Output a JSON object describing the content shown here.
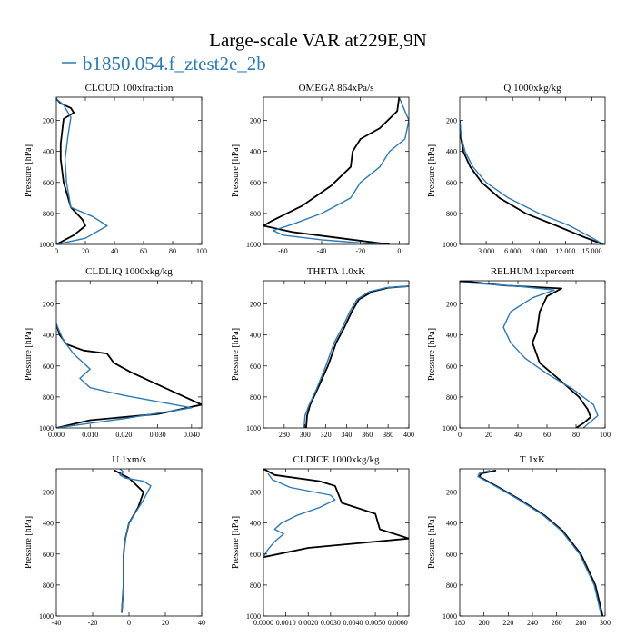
{
  "figure": {
    "title": "Large-scale VAR at229E,9N",
    "legend": [
      {
        "name": "b1850.054.f_ztest2e_2b",
        "color": "#2b7bb9"
      }
    ],
    "colors": {
      "series_a": "#000000",
      "series_b": "#2b7bb9"
    }
  },
  "chart_data": [
    {
      "type": "line",
      "title": "CLOUD  100xfraction",
      "ylabel": "Pressure [hPa]",
      "xlim": [
        0,
        100
      ],
      "ylim": [
        1000,
        50
      ],
      "y_reversed": true,
      "xticks": [
        0,
        20,
        40,
        60,
        80,
        100
      ],
      "xtick_labels": [
        "0",
        "20",
        "40",
        "60",
        "80",
        "100"
      ],
      "yticks": [
        200,
        400,
        600,
        800,
        1000
      ],
      "ytick_labels": [
        "200",
        "400",
        "600",
        "800",
        "1000"
      ],
      "series": [
        {
          "color": "#000000",
          "x": [
            0,
            3,
            10,
            12,
            5,
            3,
            3,
            5,
            10,
            18,
            20,
            12,
            0
          ],
          "y": [
            60,
            90,
            120,
            150,
            190,
            350,
            450,
            600,
            760,
            840,
            880,
            940,
            1000
          ]
        },
        {
          "color": "#2b7bb9",
          "x": [
            0,
            5,
            10,
            8,
            6,
            7,
            10,
            25,
            35,
            20,
            0
          ],
          "y": [
            60,
            100,
            180,
            300,
            450,
            600,
            760,
            820,
            880,
            960,
            1000
          ]
        }
      ]
    },
    {
      "type": "line",
      "title": "OMEGA  864xPa/s",
      "ylabel": "Pressure [hPa]",
      "xlim": [
        -70,
        5
      ],
      "ylim": [
        1000,
        50
      ],
      "y_reversed": true,
      "xticks": [
        -60,
        -40,
        -20,
        0
      ],
      "xtick_labels": [
        "-60",
        "-40",
        "-20",
        "0"
      ],
      "yticks": [
        200,
        400,
        600,
        800,
        1000
      ],
      "ytick_labels": [
        "200",
        "400",
        "600",
        "800",
        "1000"
      ],
      "series": [
        {
          "color": "#000000",
          "x": [
            0,
            -1,
            -10,
            -20,
            -24,
            -25,
            -35,
            -50,
            -66,
            -70,
            -55,
            -30,
            -5
          ],
          "y": [
            50,
            140,
            250,
            320,
            400,
            500,
            620,
            750,
            850,
            880,
            920,
            960,
            1000
          ]
        },
        {
          "color": "#2b7bb9",
          "x": [
            0,
            5,
            3,
            -5,
            -10,
            -20,
            -25,
            -40,
            -55,
            -65,
            -60,
            -40,
            -10
          ],
          "y": [
            50,
            200,
            320,
            400,
            500,
            600,
            700,
            800,
            870,
            910,
            940,
            970,
            1000
          ]
        }
      ]
    },
    {
      "type": "line",
      "title": "Q  1000xkg/kg",
      "ylabel": "Pressure [hPa]",
      "xlim": [
        0,
        16.5
      ],
      "ylim": [
        1000,
        50
      ],
      "y_reversed": true,
      "xticks": [
        3,
        6,
        9,
        12,
        15
      ],
      "xtick_labels": [
        "3.000",
        "6.000",
        "9.000",
        "12.000",
        "15.000"
      ],
      "yticks": [
        200,
        400,
        600,
        800,
        1000
      ],
      "ytick_labels": [
        "200",
        "400",
        "600",
        "800",
        "1000"
      ],
      "series": [
        {
          "color": "#000000",
          "x": [
            0,
            0.1,
            0.4,
            1.2,
            2.5,
            4.5,
            7.5,
            11,
            14,
            16.3
          ],
          "y": [
            200,
            300,
            400,
            500,
            600,
            700,
            800,
            880,
            950,
            1000
          ]
        },
        {
          "color": "#2b7bb9",
          "x": [
            0,
            0.15,
            0.6,
            1.5,
            3,
            5.5,
            9,
            12.5,
            14.8,
            16.3
          ],
          "y": [
            200,
            300,
            400,
            500,
            600,
            700,
            800,
            880,
            950,
            1000
          ]
        }
      ]
    },
    {
      "type": "line",
      "title": "CLDLIQ  1000xkg/kg",
      "ylabel": "Pressure [hPa]",
      "xlim": [
        0,
        0.043
      ],
      "ylim": [
        1000,
        50
      ],
      "y_reversed": true,
      "xticks": [
        0,
        0.01,
        0.02,
        0.03,
        0.04
      ],
      "xtick_labels": [
        "0.000",
        "0.010",
        "0.020",
        "0.030",
        "0.040"
      ],
      "yticks": [
        200,
        400,
        600,
        800,
        1000
      ],
      "ytick_labels": [
        "200",
        "400",
        "600",
        "800",
        "1000"
      ],
      "series": [
        {
          "color": "#000000",
          "x": [
            0,
            0.001,
            0.003,
            0.008,
            0.015,
            0.017,
            0.022,
            0.032,
            0.043,
            0.03,
            0.01,
            0
          ],
          "y": [
            330,
            400,
            460,
            500,
            520,
            580,
            640,
            740,
            850,
            910,
            950,
            1000
          ]
        },
        {
          "color": "#2b7bb9",
          "x": [
            0,
            0.002,
            0.005,
            0.008,
            0.01,
            0.007,
            0.01,
            0.02,
            0.04,
            0.02,
            0
          ],
          "y": [
            330,
            430,
            520,
            580,
            620,
            680,
            740,
            790,
            870,
            940,
            1000
          ]
        }
      ]
    },
    {
      "type": "line",
      "title": "THETA  1.0xK",
      "ylabel": "Pressure [hPa]",
      "xlim": [
        260,
        400
      ],
      "ylim": [
        1000,
        50
      ],
      "y_reversed": true,
      "xticks": [
        280,
        300,
        320,
        340,
        360,
        380,
        400
      ],
      "xtick_labels": [
        "280",
        "300",
        "320",
        "340",
        "360",
        "380",
        "400"
      ],
      "yticks": [
        200,
        400,
        600,
        800,
        1000
      ],
      "ytick_labels": [
        "200",
        "400",
        "600",
        "800",
        "1000"
      ],
      "series": [
        {
          "color": "#000000",
          "x": [
            400,
            380,
            365,
            352,
            345,
            338,
            330,
            322,
            312,
            305,
            302,
            301
          ],
          "y": [
            85,
            95,
            120,
            170,
            250,
            350,
            450,
            600,
            750,
            850,
            920,
            1000
          ]
        },
        {
          "color": "#2b7bb9",
          "x": [
            400,
            378,
            362,
            350,
            343,
            336,
            328,
            320,
            311,
            304,
            300,
            299
          ],
          "y": [
            85,
            95,
            120,
            170,
            250,
            350,
            450,
            600,
            750,
            850,
            920,
            1000
          ]
        }
      ]
    },
    {
      "type": "line",
      "title": "RELHUM  1xpercent",
      "ylabel": "Pressure [hPa]",
      "xlim": [
        0,
        100
      ],
      "ylim": [
        1000,
        50
      ],
      "y_reversed": true,
      "xticks": [
        0,
        20,
        40,
        60,
        80,
        100
      ],
      "xtick_labels": [
        "0",
        "20",
        "40",
        "60",
        "80",
        "100"
      ],
      "yticks": [
        200,
        400,
        600,
        800,
        1000
      ],
      "ytick_labels": [
        "200",
        "400",
        "600",
        "800",
        "1000"
      ],
      "series": [
        {
          "color": "#000000",
          "x": [
            0,
            30,
            70,
            60,
            55,
            53,
            50,
            55,
            70,
            82,
            88,
            90,
            85,
            80
          ],
          "y": [
            50,
            80,
            100,
            150,
            250,
            380,
            450,
            580,
            700,
            800,
            880,
            930,
            970,
            1000
          ]
        },
        {
          "color": "#2b7bb9",
          "x": [
            0,
            40,
            65,
            50,
            35,
            30,
            35,
            45,
            60,
            78,
            92,
            95,
            85
          ],
          "y": [
            60,
            85,
            110,
            160,
            250,
            350,
            450,
            550,
            650,
            750,
            850,
            920,
            1000
          ]
        }
      ]
    },
    {
      "type": "line",
      "title": "U  1xm/s",
      "ylabel": "Pressure [hPa]",
      "xlim": [
        -40,
        40
      ],
      "ylim": [
        1000,
        50
      ],
      "y_reversed": true,
      "xticks": [
        -40,
        -20,
        0,
        20,
        40
      ],
      "xtick_labels": [
        "-40",
        "-20",
        "0",
        "20",
        "40"
      ],
      "yticks": [
        200,
        400,
        600,
        800,
        1000
      ],
      "ytick_labels": [
        "200",
        "400",
        "600",
        "800",
        "1000"
      ],
      "series": [
        {
          "color": "#000000",
          "x": [
            -8,
            0,
            8,
            5,
            0,
            -2,
            -3,
            -3,
            -4
          ],
          "y": [
            60,
            110,
            200,
            300,
            400,
            500,
            600,
            800,
            980
          ]
        },
        {
          "color": "#2b7bb9",
          "x": [
            -5,
            -3,
            -5,
            -2,
            8,
            12,
            8,
            0,
            -2,
            -3,
            -3,
            -4
          ],
          "y": [
            50,
            70,
            90,
            110,
            130,
            160,
            250,
            400,
            500,
            600,
            800,
            980
          ]
        }
      ]
    },
    {
      "type": "line",
      "title": "CLDICE  1000xkg/kg",
      "ylabel": "Pressure [hPa]",
      "xlim": [
        0,
        0.0065
      ],
      "ylim": [
        1000,
        50
      ],
      "y_reversed": true,
      "xticks": [
        0,
        0.001,
        0.002,
        0.003,
        0.004,
        0.005,
        0.006
      ],
      "xtick_labels": [
        "0.0000",
        "0.0010",
        "0.0020",
        "0.0030",
        "0.0040",
        "0.0050",
        "0.0060"
      ],
      "yticks": [
        200,
        400,
        600,
        800,
        1000
      ],
      "ytick_labels": [
        "200",
        "400",
        "600",
        "800",
        "1000"
      ],
      "series": [
        {
          "color": "#000000",
          "x": [
            0,
            0.0005,
            0.0025,
            0.0032,
            0.0035,
            0.005,
            0.0052,
            0.0065,
            0.002,
            0
          ],
          "y": [
            50,
            90,
            130,
            160,
            270,
            340,
            440,
            500,
            560,
            620
          ]
        },
        {
          "color": "#2b7bb9",
          "x": [
            0.0002,
            0.0004,
            0.0012,
            0.003,
            0.0032,
            0.0025,
            0.0015,
            0.0008,
            0.0005,
            0.0009,
            0.0005,
            0.0002,
            0
          ],
          "y": [
            80,
            120,
            170,
            220,
            250,
            300,
            350,
            400,
            440,
            470,
            520,
            570,
            620
          ]
        }
      ]
    },
    {
      "type": "line",
      "title": "T  1xK",
      "ylabel": "Pressure [hPa]",
      "xlim": [
        180,
        300
      ],
      "ylim": [
        1000,
        50
      ],
      "y_reversed": true,
      "xticks": [
        180,
        200,
        220,
        240,
        260,
        280,
        300
      ],
      "xtick_labels": [
        "180",
        "200",
        "220",
        "240",
        "260",
        "280",
        "300"
      ],
      "yticks": [
        200,
        400,
        600,
        800,
        1000
      ],
      "ytick_labels": [
        "200",
        "400",
        "600",
        "800",
        "1000"
      ],
      "series": [
        {
          "color": "#000000",
          "x": [
            210,
            198,
            196,
            210,
            230,
            250,
            265,
            280,
            292,
            298
          ],
          "y": [
            60,
            80,
            100,
            160,
            250,
            350,
            450,
            600,
            800,
            1000
          ]
        },
        {
          "color": "#2b7bb9",
          "x": [
            205,
            196,
            195,
            209,
            229,
            249,
            264,
            279,
            291,
            297
          ],
          "y": [
            60,
            80,
            100,
            160,
            250,
            350,
            450,
            600,
            800,
            1000
          ]
        }
      ]
    }
  ]
}
